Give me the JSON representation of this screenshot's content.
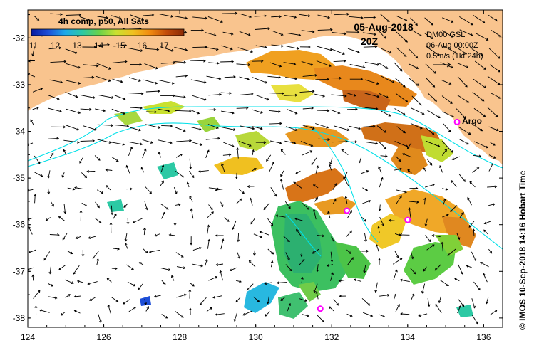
{
  "colorbar": {
    "title": "4h comp, p50, All Sats",
    "ticks": [
      "11",
      "12",
      "13",
      "14",
      "15",
      "16",
      "17"
    ],
    "colors": [
      "#0a1aa0",
      "#1e4fd8",
      "#1fa9e8",
      "#2cc9a4",
      "#6ad24a",
      "#c9e030",
      "#f0c020",
      "#f08a10",
      "#c04a0a",
      "#8a2a05"
    ]
  },
  "date": {
    "line1": "05-Aug-2018",
    "line2": "20Z"
  },
  "current_info": {
    "line1": "DM00 GSL",
    "line2": "06-Aug 00:00Z",
    "line3": "0.5m/s (1kt 24h)"
  },
  "x_axis": {
    "labels": [
      "124",
      "126",
      "128",
      "130",
      "132",
      "134",
      "136"
    ],
    "values": [
      124,
      126,
      128,
      130,
      132,
      134,
      136
    ]
  },
  "y_axis": {
    "labels": [
      "-32",
      "-33",
      "-34",
      "-35",
      "-36",
      "-37",
      "-38"
    ],
    "values": [
      -32,
      -33,
      -34,
      -35,
      -36,
      -37,
      -38
    ]
  },
  "extent": {
    "lon": [
      124,
      136.5
    ],
    "lat": [
      -31.4,
      -38.2
    ]
  },
  "argo": {
    "label": "Argo",
    "floats": [
      {
        "lon": 135.3,
        "lat": -33.8
      },
      {
        "lon": 132.4,
        "lat": -35.7
      },
      {
        "lon": 134.0,
        "lat": -35.9
      },
      {
        "lon": 131.7,
        "lat": -37.8
      }
    ]
  },
  "copyright": "© IMOS 10-Sep-2018 14:16 Hobart Time",
  "colors": {
    "land": "#f9c48e",
    "bathy": "#00e0e8",
    "argo": "#ff00ff"
  }
}
